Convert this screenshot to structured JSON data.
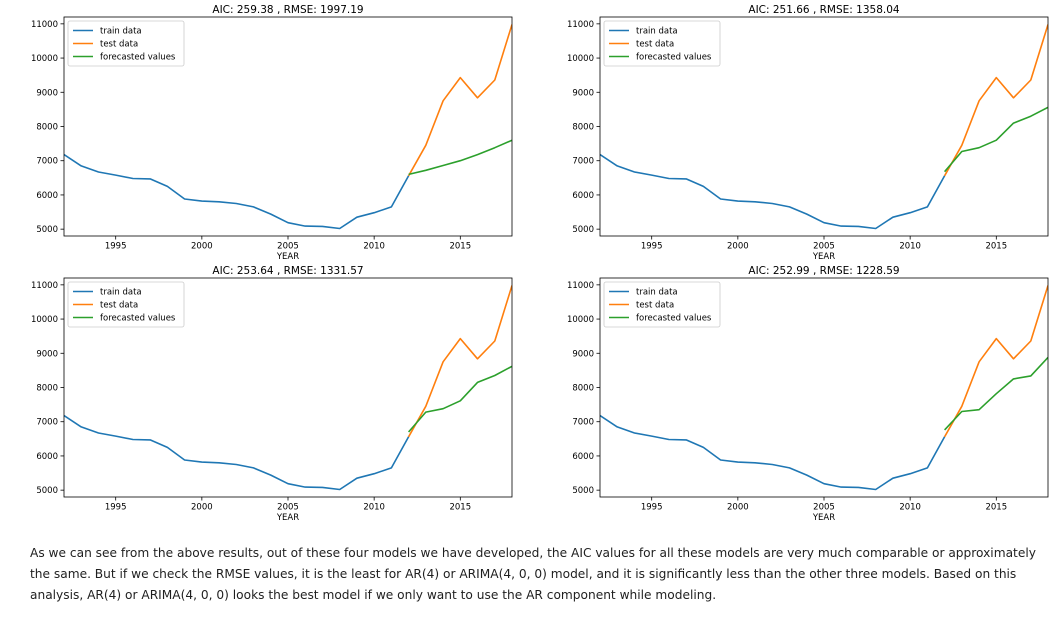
{
  "chart_data": [
    {
      "type": "line",
      "title": "AIC: 259.38 , RMSE: 1997.19",
      "xlabel": "YEAR",
      "ylabel": "",
      "xlim": [
        1992,
        2018
      ],
      "ylim": [
        4800,
        11200
      ],
      "xticks": [
        1995,
        2000,
        2005,
        2010,
        2015
      ],
      "yticks": [
        5000,
        6000,
        7000,
        8000,
        9000,
        10000,
        11000
      ],
      "legend": "top-left",
      "grid": false,
      "series": [
        {
          "name": "train data",
          "color": "#1f77b4",
          "x": [
            1992,
            1993,
            1994,
            1995,
            1996,
            1997,
            1998,
            1999,
            2000,
            2001,
            2002,
            2003,
            2004,
            2005,
            2006,
            2007,
            2008,
            2009,
            2010,
            2011,
            2012
          ],
          "y": [
            7180,
            6850,
            6670,
            6580,
            6480,
            6470,
            6250,
            5880,
            5820,
            5800,
            5750,
            5650,
            5440,
            5190,
            5090,
            5080,
            5020,
            5350,
            5480,
            5650,
            6560
          ]
        },
        {
          "name": "test data",
          "color": "#ff7f0e",
          "x": [
            2012,
            2013,
            2014,
            2015,
            2016,
            2017,
            2018
          ],
          "y": [
            6560,
            7450,
            8750,
            9430,
            8840,
            9360,
            10980
          ]
        },
        {
          "name": "forecasted values",
          "color": "#2ca02c",
          "x": [
            2012,
            2013,
            2014,
            2015,
            2016,
            2017,
            2018
          ],
          "y": [
            6600,
            6720,
            6860,
            7000,
            7180,
            7380,
            7600
          ]
        }
      ]
    },
    {
      "type": "line",
      "title": "AIC: 251.66 , RMSE: 1358.04",
      "xlabel": "YEAR",
      "ylabel": "",
      "xlim": [
        1992,
        2018
      ],
      "ylim": [
        4800,
        11200
      ],
      "xticks": [
        1995,
        2000,
        2005,
        2010,
        2015
      ],
      "yticks": [
        5000,
        6000,
        7000,
        8000,
        9000,
        10000,
        11000
      ],
      "legend": "top-left",
      "grid": false,
      "series": [
        {
          "name": "train data",
          "color": "#1f77b4",
          "x": [
            1992,
            1993,
            1994,
            1995,
            1996,
            1997,
            1998,
            1999,
            2000,
            2001,
            2002,
            2003,
            2004,
            2005,
            2006,
            2007,
            2008,
            2009,
            2010,
            2011,
            2012
          ],
          "y": [
            7180,
            6850,
            6670,
            6580,
            6480,
            6470,
            6250,
            5880,
            5820,
            5800,
            5750,
            5650,
            5440,
            5190,
            5090,
            5080,
            5020,
            5350,
            5480,
            5650,
            6560
          ]
        },
        {
          "name": "test data",
          "color": "#ff7f0e",
          "x": [
            2012,
            2013,
            2014,
            2015,
            2016,
            2017,
            2018
          ],
          "y": [
            6560,
            7450,
            8750,
            9430,
            8840,
            9360,
            10980
          ]
        },
        {
          "name": "forecasted values",
          "color": "#2ca02c",
          "x": [
            2012,
            2013,
            2014,
            2015,
            2016,
            2017,
            2018
          ],
          "y": [
            6680,
            7270,
            7380,
            7600,
            8100,
            8300,
            8560
          ]
        }
      ]
    },
    {
      "type": "line",
      "title": "AIC: 253.64 , RMSE: 1331.57",
      "xlabel": "YEAR",
      "ylabel": "",
      "xlim": [
        1992,
        2018
      ],
      "ylim": [
        4800,
        11200
      ],
      "xticks": [
        1995,
        2000,
        2005,
        2010,
        2015
      ],
      "yticks": [
        5000,
        6000,
        7000,
        8000,
        9000,
        10000,
        11000
      ],
      "legend": "top-left",
      "grid": false,
      "series": [
        {
          "name": "train data",
          "color": "#1f77b4",
          "x": [
            1992,
            1993,
            1994,
            1995,
            1996,
            1997,
            1998,
            1999,
            2000,
            2001,
            2002,
            2003,
            2004,
            2005,
            2006,
            2007,
            2008,
            2009,
            2010,
            2011,
            2012
          ],
          "y": [
            7180,
            6850,
            6670,
            6580,
            6480,
            6470,
            6250,
            5880,
            5820,
            5800,
            5750,
            5650,
            5440,
            5190,
            5090,
            5080,
            5020,
            5350,
            5480,
            5650,
            6560
          ]
        },
        {
          "name": "test data",
          "color": "#ff7f0e",
          "x": [
            2012,
            2013,
            2014,
            2015,
            2016,
            2017,
            2018
          ],
          "y": [
            6560,
            7450,
            8750,
            9430,
            8840,
            9360,
            10980
          ]
        },
        {
          "name": "forecasted values",
          "color": "#2ca02c",
          "x": [
            2012,
            2013,
            2014,
            2015,
            2016,
            2017,
            2018
          ],
          "y": [
            6700,
            7280,
            7380,
            7610,
            8150,
            8350,
            8620
          ]
        }
      ]
    },
    {
      "type": "line",
      "title": "AIC: 252.99 , RMSE: 1228.59",
      "xlabel": "YEAR",
      "ylabel": "",
      "xlim": [
        1992,
        2018
      ],
      "ylim": [
        4800,
        11200
      ],
      "xticks": [
        1995,
        2000,
        2005,
        2010,
        2015
      ],
      "yticks": [
        5000,
        6000,
        7000,
        8000,
        9000,
        10000,
        11000
      ],
      "legend": "top-left",
      "grid": false,
      "series": [
        {
          "name": "train data",
          "color": "#1f77b4",
          "x": [
            1992,
            1993,
            1994,
            1995,
            1996,
            1997,
            1998,
            1999,
            2000,
            2001,
            2002,
            2003,
            2004,
            2005,
            2006,
            2007,
            2008,
            2009,
            2010,
            2011,
            2012
          ],
          "y": [
            7180,
            6850,
            6670,
            6580,
            6480,
            6470,
            6250,
            5880,
            5820,
            5800,
            5750,
            5650,
            5440,
            5190,
            5090,
            5080,
            5020,
            5350,
            5480,
            5650,
            6560
          ]
        },
        {
          "name": "test data",
          "color": "#ff7f0e",
          "x": [
            2012,
            2013,
            2014,
            2015,
            2016,
            2017,
            2018
          ],
          "y": [
            6560,
            7450,
            8750,
            9430,
            8840,
            9360,
            10980
          ]
        },
        {
          "name": "forecasted values",
          "color": "#2ca02c",
          "x": [
            2012,
            2013,
            2014,
            2015,
            2016,
            2017,
            2018
          ],
          "y": [
            6760,
            7300,
            7350,
            7820,
            8250,
            8340,
            8880
          ]
        }
      ]
    }
  ],
  "caption": {
    "text": "As we can see from the above results, out of these four models we have developed, the AIC values for all these models are very much comparable or approximately the same. But if we check the RMSE values, it is the least for AR(4) or ARIMA(4, 0, 0) model, and it is significantly less than the other three models. Based on this analysis, AR(4) or ARIMA(4, 0, 0) looks the best model if we only want to use the AR component while modeling."
  }
}
